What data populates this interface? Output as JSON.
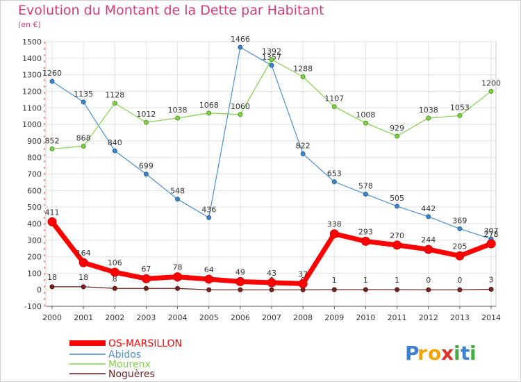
{
  "title": "Evolution du Montant de la Dette par Habitant",
  "subtitle": "(en €)",
  "logo_text": "Proxiti",
  "chart_data": {
    "type": "line",
    "title": "Evolution du Montant de la Dette par Habitant",
    "ylabel": "(en €)",
    "xlabel": "",
    "x": [
      2000,
      2001,
      2002,
      2003,
      2004,
      2005,
      2006,
      2007,
      2008,
      2009,
      2010,
      2011,
      2012,
      2013,
      2014
    ],
    "ylim": [
      -100,
      1500
    ],
    "yticks": [
      -100,
      0,
      100,
      200,
      300,
      400,
      500,
      600,
      700,
      800,
      900,
      1000,
      1100,
      1200,
      1300,
      1400,
      1500
    ],
    "grid": true,
    "legend_position": "bottom-left",
    "series": [
      {
        "name": "OS-MARSILLON",
        "color": "#ff0000",
        "values": [
          411,
          164,
          106,
          67,
          78,
          64,
          49,
          43,
          37,
          338,
          293,
          270,
          244,
          205,
          278
        ]
      },
      {
        "name": "Abidos",
        "color": "#4a8fd0",
        "values": [
          1260,
          1135,
          840,
          699,
          548,
          436,
          1466,
          1357,
          822,
          653,
          578,
          505,
          442,
          369,
          307
        ]
      },
      {
        "name": "Mourenx",
        "color": "#7fd24a",
        "values": [
          852,
          868,
          1128,
          1012,
          1038,
          1068,
          1060,
          1392,
          1288,
          1107,
          1008,
          929,
          1038,
          1053,
          1200
        ]
      },
      {
        "name": "Noguères",
        "color": "#6b1f1f",
        "values": [
          18,
          18,
          8,
          8,
          8,
          0,
          0,
          0,
          0,
          1,
          1,
          1,
          0,
          0,
          3
        ]
      }
    ]
  }
}
